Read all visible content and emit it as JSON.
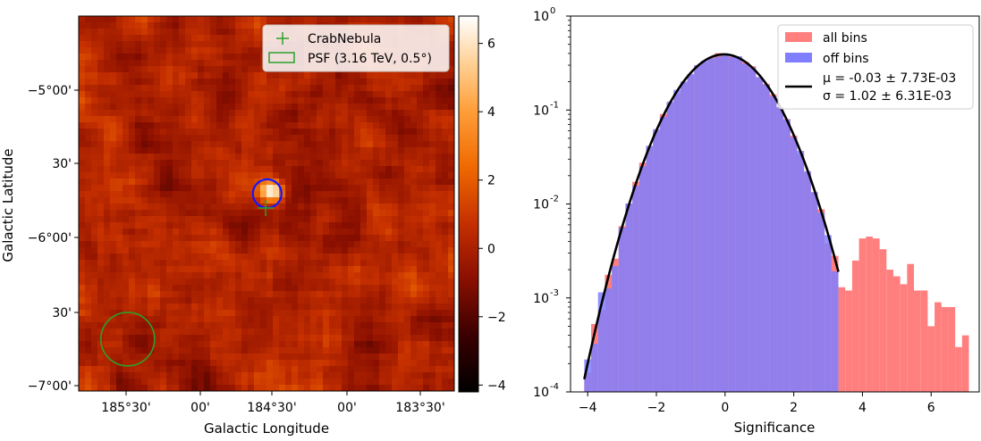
{
  "chart_data": [
    {
      "type": "heatmap",
      "xlabel": "Galactic Longitude",
      "ylabel": "Galactic Latitude",
      "x_ticks": [
        "185°30'",
        "00'",
        "184°30'",
        "00'",
        "183°30'"
      ],
      "y_ticks": [
        "−5°00'",
        "30'",
        "−6°00'",
        "30'",
        "−7°00'"
      ],
      "colorbar": {
        "ticks": [
          "6",
          "4",
          "2",
          "0",
          "−2",
          "−4"
        ],
        "range": [
          -4.2,
          6.8
        ]
      },
      "legend": [
        {
          "label": "CrabNebula",
          "marker": "plus",
          "color": "#2ca02c"
        },
        {
          "label": "PSF (3.16 TeV, 0.5°)",
          "marker": "rect",
          "color": "#2ca02c"
        }
      ],
      "source_position": {
        "lon": 184.55,
        "lat": -5.78
      },
      "psf_position": {
        "lon": 185.52,
        "lat": -6.78
      }
    },
    {
      "type": "bar",
      "xlabel": "Significance",
      "ylabel": "",
      "yscale": "log",
      "ylim": [
        0.0001,
        1
      ],
      "xlim": [
        -4.5,
        7.4
      ],
      "y_ticks": [
        {
          "base": "10",
          "exp": "0"
        },
        {
          "base": "10",
          "exp": "-1"
        },
        {
          "base": "10",
          "exp": "-2"
        },
        {
          "base": "10",
          "exp": "-3"
        },
        {
          "base": "10",
          "exp": "-4"
        }
      ],
      "x_ticks": [
        "−4",
        "−2",
        "0",
        "2",
        "4",
        "6"
      ],
      "legend": [
        {
          "label": "all bins",
          "color": "#ff7f7f"
        },
        {
          "label": "off bins",
          "color": "#7f7fff"
        },
        {
          "label1": "μ = -0.03 ± 7.73E-03",
          "label2": "σ = 1.02 ± 6.31E-03",
          "color": "#000000"
        }
      ],
      "series": [
        {
          "name": "all bins",
          "color": "#ff7f7f",
          "x_range": [
            -4.1,
            6.9
          ],
          "tail_values": [
            [
              3.3,
              0.0013
            ],
            [
              3.5,
              0.0012
            ],
            [
              3.7,
              0.0025
            ],
            [
              3.9,
              0.0043
            ],
            [
              4.1,
              0.0045
            ],
            [
              4.3,
              0.0043
            ],
            [
              4.5,
              0.0033
            ],
            [
              4.7,
              0.002
            ],
            [
              4.9,
              0.0017
            ],
            [
              5.1,
              0.0014
            ],
            [
              5.3,
              0.0023
            ],
            [
              5.5,
              0.0012
            ],
            [
              5.7,
              0.0012
            ],
            [
              5.9,
              0.0005
            ],
            [
              6.1,
              0.0009
            ],
            [
              6.3,
              0.0008
            ],
            [
              6.5,
              0.0008
            ],
            [
              6.7,
              0.0003
            ],
            [
              6.9,
              0.0004
            ]
          ]
        },
        {
          "name": "off bins",
          "color": "#7f7fff",
          "x_range": [
            -4.1,
            3.3
          ]
        }
      ],
      "fit": {
        "mu": -0.03,
        "sigma": 1.02,
        "x_range": [
          -4.1,
          3.3
        ]
      }
    }
  ]
}
